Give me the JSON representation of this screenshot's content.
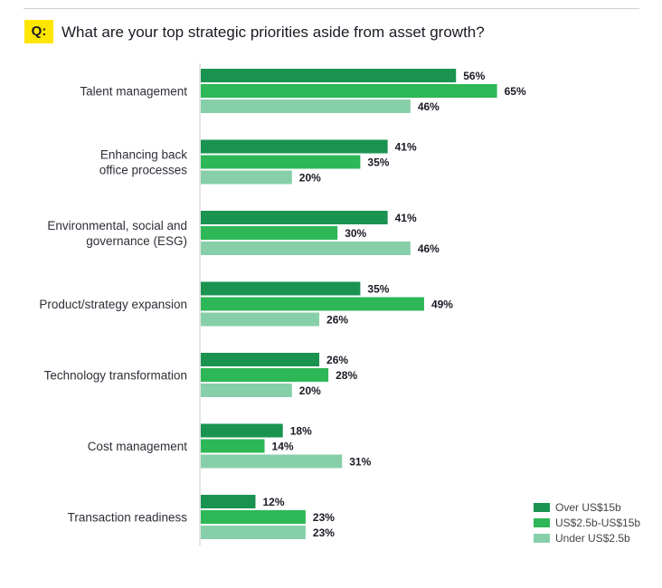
{
  "question": {
    "badge": "Q:",
    "text": "What are your top strategic priorities aside from asset growth?"
  },
  "chart_data": {
    "type": "bar",
    "orientation": "horizontal",
    "categories": [
      [
        "Talent management"
      ],
      [
        "Enhancing back",
        "office processes"
      ],
      [
        "Environmental, social and",
        "governance (ESG)"
      ],
      [
        "Product/strategy expansion"
      ],
      [
        "Technology transformation"
      ],
      [
        "Cost management"
      ],
      [
        "Transaction readiness"
      ]
    ],
    "series": [
      {
        "name": "Over US$15b",
        "color": "#1a9350",
        "values": [
          56,
          41,
          41,
          35,
          26,
          18,
          12
        ]
      },
      {
        "name": "US$2.5b-US$15b",
        "color": "#2db757",
        "values": [
          65,
          35,
          30,
          49,
          28,
          14,
          23
        ]
      },
      {
        "name": "Under US$2.5b",
        "color": "#87cfa9",
        "values": [
          46,
          20,
          46,
          26,
          20,
          31,
          23
        ]
      }
    ],
    "value_suffix": "%",
    "xlim": [
      0,
      100
    ],
    "grid": false,
    "legend_position": "bottom-right"
  }
}
